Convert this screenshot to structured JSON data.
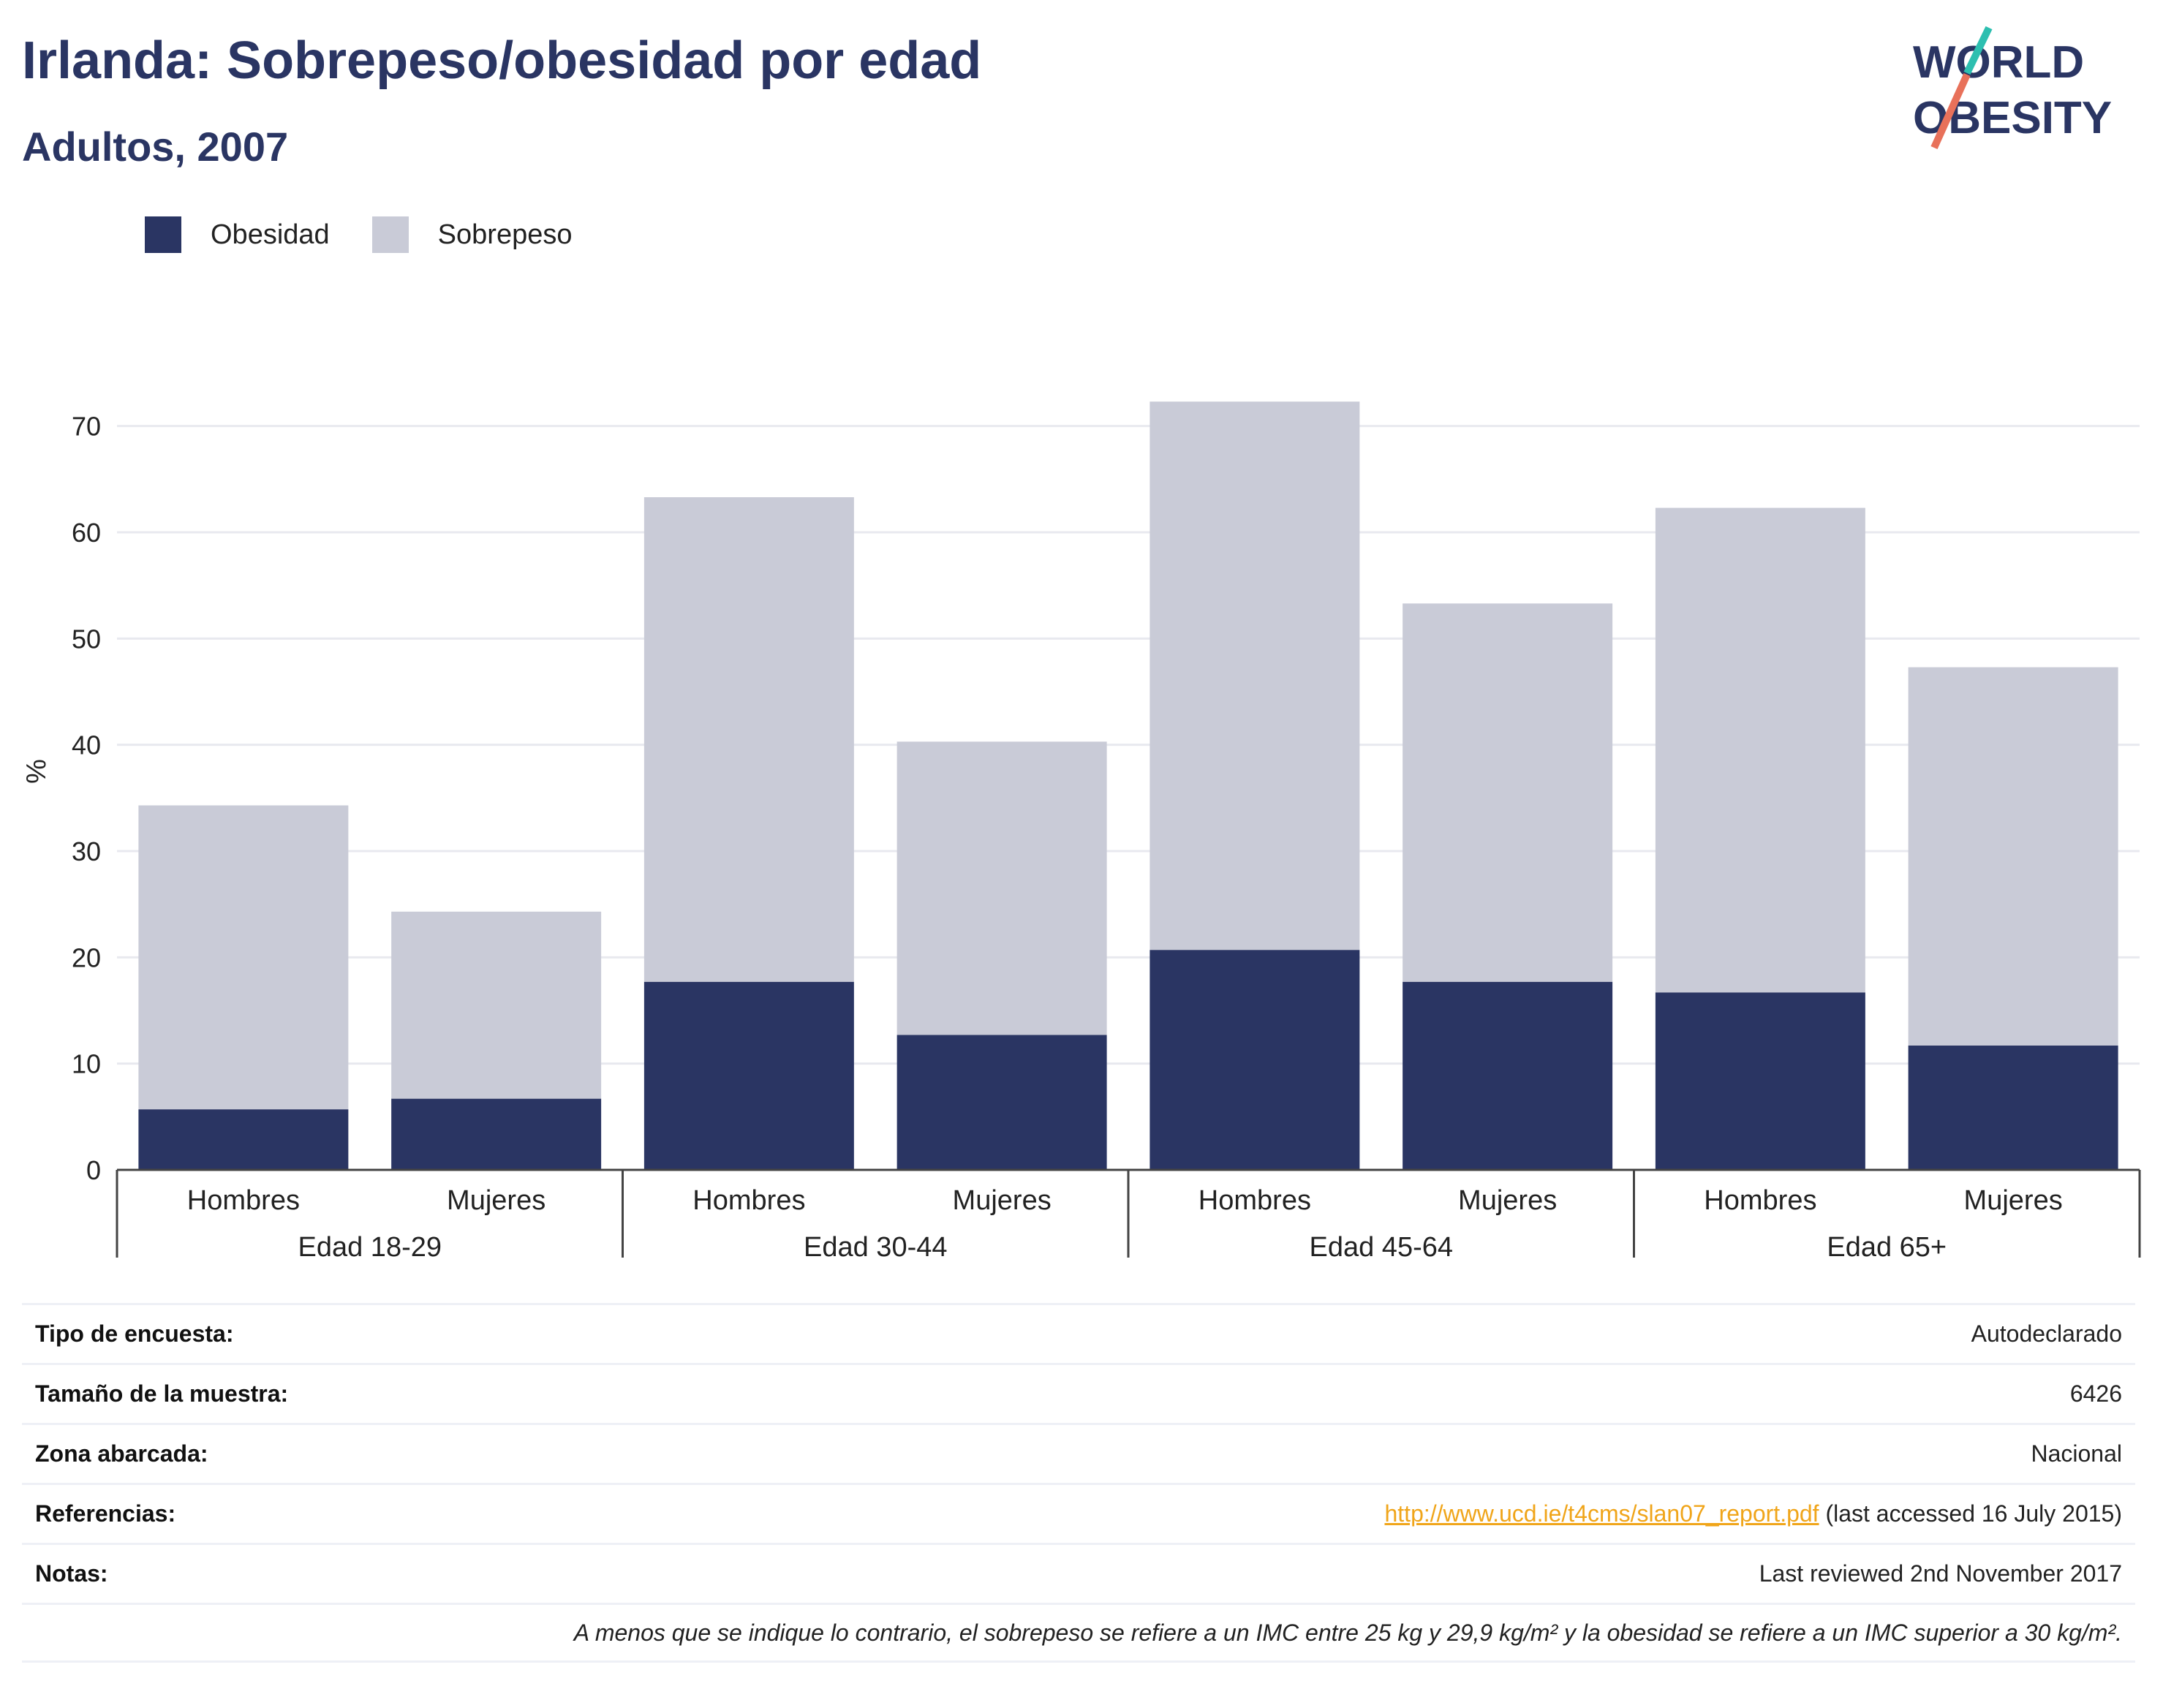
{
  "title": "Irlanda: Sobrepeso/obesidad por edad",
  "subtitle": "Adultos, 2007",
  "logo": {
    "line1": "WORLD",
    "line2": "OBESITY"
  },
  "legend": [
    {
      "label": "Obesidad",
      "color": "#2a3563"
    },
    {
      "label": "Sobrepeso",
      "color": "#c9cbd7"
    }
  ],
  "chart_data": {
    "type": "bar",
    "stacked": true,
    "ylabel": "%",
    "ylim": [
      0,
      75
    ],
    "yticks": [
      0,
      10,
      20,
      30,
      40,
      50,
      60,
      70
    ],
    "grid": true,
    "legend_position": "top-left",
    "groups": [
      "Edad 18-29",
      "Edad 30-44",
      "Edad 45-64",
      "Edad 65+"
    ],
    "categories": [
      "Hombres",
      "Mujeres",
      "Hombres",
      "Mujeres",
      "Hombres",
      "Mujeres",
      "Hombres",
      "Mujeres"
    ],
    "series": [
      {
        "name": "Obesidad",
        "values": [
          5.7,
          6.7,
          17.7,
          12.7,
          20.7,
          17.7,
          16.7,
          11.7
        ]
      },
      {
        "name": "Sobrepeso",
        "values": [
          28.6,
          17.6,
          45.6,
          27.6,
          51.6,
          35.6,
          45.6,
          35.6
        ]
      }
    ],
    "totals": [
      34.3,
      24.3,
      63.3,
      40.3,
      72.3,
      53.3,
      62.3,
      47.3
    ]
  },
  "metadata": {
    "rows": [
      {
        "key": "Tipo de encuesta:",
        "value": "Autodeclarado"
      },
      {
        "key": "Tamaño de la muestra:",
        "value": "6426"
      },
      {
        "key": "Zona abarcada:",
        "value": "Nacional"
      },
      {
        "key": "Referencias:",
        "link": "http://www.ucd.ie/t4cms/slan07_report.pdf",
        "suffix": " (last accessed 16 July 2015)"
      },
      {
        "key": "Notas:",
        "value": "Last reviewed 2nd November 2017"
      }
    ],
    "note": "A menos que se indique lo contrario, el sobrepeso se refiere a un IMC entre 25 kg y 29,9 kg/m² y la obesidad se refiere a un IMC superior a 30 kg/m²."
  }
}
